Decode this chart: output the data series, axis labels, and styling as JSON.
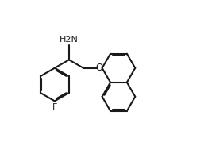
{
  "background": "#ffffff",
  "line_color": "#1a1a1a",
  "line_width": 1.5,
  "text_color": "#1a1a1a",
  "nh2_label": "H2N",
  "o_label": "O",
  "f_label": "F",
  "figsize": [
    2.67,
    1.89
  ],
  "dpi": 100
}
